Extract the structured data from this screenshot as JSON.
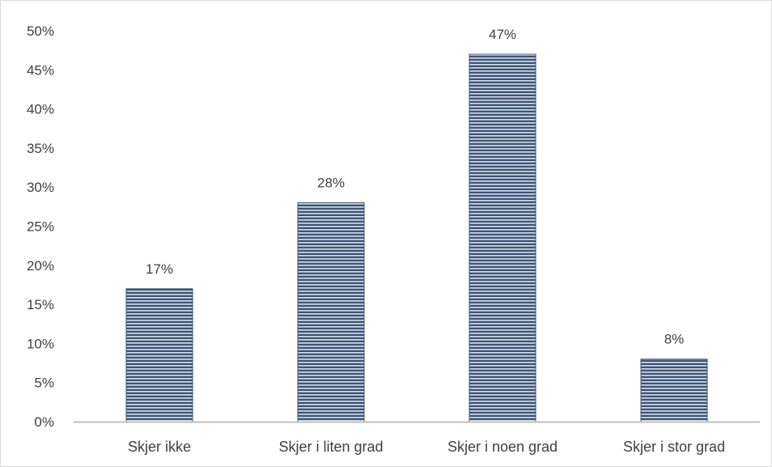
{
  "chart_data": {
    "type": "bar",
    "categories": [
      "Skjer ikke",
      "Skjer i liten grad",
      "Skjer i noen grad",
      "Skjer i stor grad"
    ],
    "values": [
      17,
      28,
      47,
      8
    ],
    "data_labels": [
      "17%",
      "28%",
      "47%",
      "8%"
    ],
    "title": "",
    "xlabel": "",
    "ylabel": "",
    "ylim": [
      0,
      50
    ],
    "yticks": [
      0,
      5,
      10,
      15,
      20,
      25,
      30,
      35,
      40,
      45,
      50
    ],
    "ytick_labels": [
      "0%",
      "5%",
      "10%",
      "15%",
      "20%",
      "25%",
      "30%",
      "35%",
      "40%",
      "45%",
      "50%"
    ],
    "grid": false,
    "legend": "none",
    "colors": {
      "bar_fill": "#3b5478",
      "bar_stripe": "#ffffff",
      "axis": "#bfbfbf",
      "text": "#404040"
    }
  }
}
